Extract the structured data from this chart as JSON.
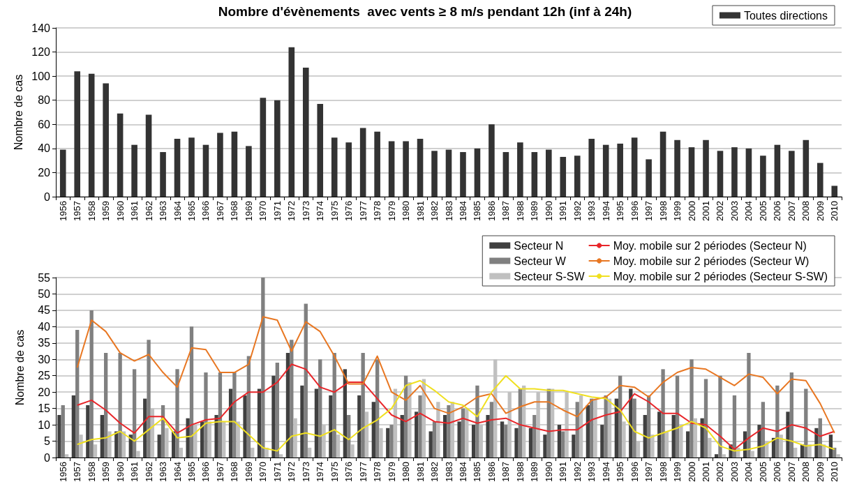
{
  "chart_data": [
    {
      "type": "bar",
      "title": "Nombre d'évènements  avec vents ≥ 8 m/s pendant 12h (inf à 24h)",
      "ylabel": "Nombre de cas",
      "categories": [
        "1956",
        "1957",
        "1958",
        "1959",
        "1960",
        "1961",
        "1962",
        "1963",
        "1964",
        "1965",
        "1966",
        "1967",
        "1968",
        "1969",
        "1970",
        "1971",
        "1972",
        "1973",
        "1974",
        "1975",
        "1976",
        "1977",
        "1978",
        "1979",
        "1980",
        "1981",
        "1982",
        "1983",
        "1984",
        "1985",
        "1986",
        "1987",
        "1988",
        "1989",
        "1990",
        "1991",
        "1992",
        "1993",
        "1994",
        "1995",
        "1996",
        "1997",
        "1998",
        "1999",
        "2000",
        "2001",
        "2002",
        "2003",
        "2004",
        "2005",
        "2006",
        "2007",
        "2008",
        "2009",
        "2010"
      ],
      "series": [
        {
          "name": "Toutes directions",
          "color": "#333333",
          "values": [
            39,
            104,
            102,
            94,
            69,
            43,
            68,
            37,
            48,
            49,
            43,
            53,
            54,
            42,
            82,
            80,
            124,
            107,
            77,
            49,
            45,
            57,
            54,
            46,
            46,
            48,
            38,
            39,
            37,
            40,
            60,
            37,
            45,
            37,
            39,
            33,
            34,
            48,
            43,
            44,
            49,
            31,
            54,
            47,
            41,
            47,
            38,
            41,
            40,
            34,
            43,
            38,
            47,
            28,
            9
          ]
        }
      ],
      "ylim": [
        0,
        140
      ],
      "yticks": [
        0,
        20,
        40,
        60,
        80,
        100,
        120,
        140
      ],
      "grid": "y",
      "legend": "top right"
    },
    {
      "type": "bar",
      "ylabel": "Nombre de cas",
      "categories": [
        "1956",
        "1957",
        "1958",
        "1959",
        "1960",
        "1961",
        "1962",
        "1963",
        "1964",
        "1965",
        "1966",
        "1967",
        "1968",
        "1969",
        "1970",
        "1971",
        "1972",
        "1973",
        "1974",
        "1975",
        "1976",
        "1977",
        "1978",
        "1979",
        "1980",
        "1981",
        "1982",
        "1983",
        "1984",
        "1985",
        "1986",
        "1987",
        "1988",
        "1989",
        "1990",
        "1991",
        "1992",
        "1993",
        "1994",
        "1995",
        "1996",
        "1997",
        "1998",
        "1999",
        "2000",
        "2001",
        "2002",
        "2003",
        "2004",
        "2005",
        "2006",
        "2007",
        "2008",
        "2009",
        "2010"
      ],
      "series": [
        {
          "name": "Secteur N",
          "color": "#404040",
          "values": [
            13,
            19,
            16,
            13,
            8,
            7,
            18,
            7,
            8,
            12,
            11,
            13,
            21,
            19,
            21,
            25,
            32,
            22,
            21,
            19,
            27,
            19,
            17,
            9,
            13,
            14,
            8,
            13,
            11,
            10,
            13,
            11,
            9,
            9,
            7,
            10,
            7,
            16,
            10,
            18,
            21,
            13,
            14,
            13,
            8,
            12,
            1,
            4,
            8,
            10,
            6,
            14,
            4,
            9,
            7
          ]
        },
        {
          "name": "Secteur W",
          "color": "#808080",
          "values": [
            16,
            39,
            45,
            32,
            32,
            27,
            36,
            16,
            27,
            40,
            26,
            26,
            26,
            31,
            55,
            29,
            36,
            47,
            30,
            32,
            13,
            32,
            30,
            10,
            25,
            19,
            11,
            16,
            15,
            22,
            17,
            10,
            21,
            13,
            21,
            8,
            17,
            18,
            19,
            25,
            18,
            19,
            27,
            25,
            30,
            24,
            25,
            19,
            32,
            17,
            22,
            26,
            21,
            12,
            3
          ]
        },
        {
          "name": "Secteur S-SW",
          "color": "#c0c0c0",
          "values": [
            1,
            7,
            4,
            8,
            8,
            2,
            15,
            9,
            3,
            10,
            11,
            11,
            11,
            3,
            3,
            1,
            12,
            3,
            10,
            7,
            4,
            14,
            9,
            21,
            23,
            24,
            17,
            17,
            15,
            10,
            30,
            20,
            22,
            20,
            21,
            20,
            19,
            18,
            18,
            11,
            5,
            7,
            8,
            10,
            12,
            6,
            1,
            3,
            2,
            5,
            7,
            3,
            4,
            4,
            1
          ]
        },
        {
          "name": "Moy. mobile sur 2 périodes (Secteur N)",
          "type": "line",
          "color": "#e8262a",
          "values": [
            null,
            16,
            17.5,
            14.5,
            10.5,
            7.5,
            12.5,
            12.5,
            7.5,
            10,
            11.5,
            12,
            17,
            20,
            20,
            23,
            28.5,
            27,
            21.5,
            20,
            23,
            23,
            18,
            13,
            11,
            13.5,
            11,
            10.5,
            12,
            10.5,
            11.5,
            12,
            10,
            9,
            8,
            8.5,
            8.5,
            11.5,
            13,
            14,
            19.5,
            17,
            13.5,
            13.5,
            10.5,
            10,
            6.5,
            2.5,
            6,
            9,
            8,
            10,
            9,
            6.5,
            8
          ]
        },
        {
          "name": "Moy. mobile sur 2 périodes (Secteur W)",
          "type": "line",
          "color": "#e87722",
          "values": [
            null,
            27.5,
            42,
            38.5,
            32,
            29.5,
            31.5,
            26,
            21.5,
            33.5,
            33,
            26,
            26,
            28.5,
            43,
            42,
            32.5,
            41.5,
            38.5,
            31,
            22.5,
            22.5,
            31,
            20,
            17.5,
            22,
            15,
            13.5,
            15.5,
            18.5,
            19.5,
            13.5,
            15.5,
            17,
            17,
            14.5,
            12.5,
            17.5,
            18.5,
            22,
            21.5,
            18.5,
            23,
            26,
            27.5,
            27,
            24.5,
            22,
            25.5,
            24.5,
            19.5,
            24,
            23.5,
            16.5,
            7.5
          ]
        },
        {
          "name": "Moy. mobile sur 2 périodes (Secteur S-SW)",
          "type": "line",
          "color": "#f0e020",
          "values": [
            null,
            4,
            5.5,
            6,
            8,
            5,
            8.5,
            12,
            6,
            6.5,
            10.5,
            11,
            11,
            7,
            3,
            2,
            6.5,
            7.5,
            6.5,
            8.5,
            5.5,
            9,
            11.5,
            15,
            22,
            23.5,
            20.5,
            17,
            16,
            12.5,
            20,
            25,
            21,
            21,
            20.5,
            20.5,
            19.5,
            18.5,
            18,
            14.5,
            8,
            6,
            7.5,
            9,
            11,
            9,
            3.5,
            2,
            2.5,
            3.5,
            6,
            5,
            3.5,
            4,
            2.5
          ]
        }
      ],
      "ylim": [
        0,
        55
      ],
      "yticks": [
        0,
        5,
        10,
        15,
        20,
        25,
        30,
        35,
        40,
        45,
        50,
        55
      ],
      "grid": "y",
      "legend": "top right",
      "marker": "none",
      "line_style": "solid"
    }
  ]
}
